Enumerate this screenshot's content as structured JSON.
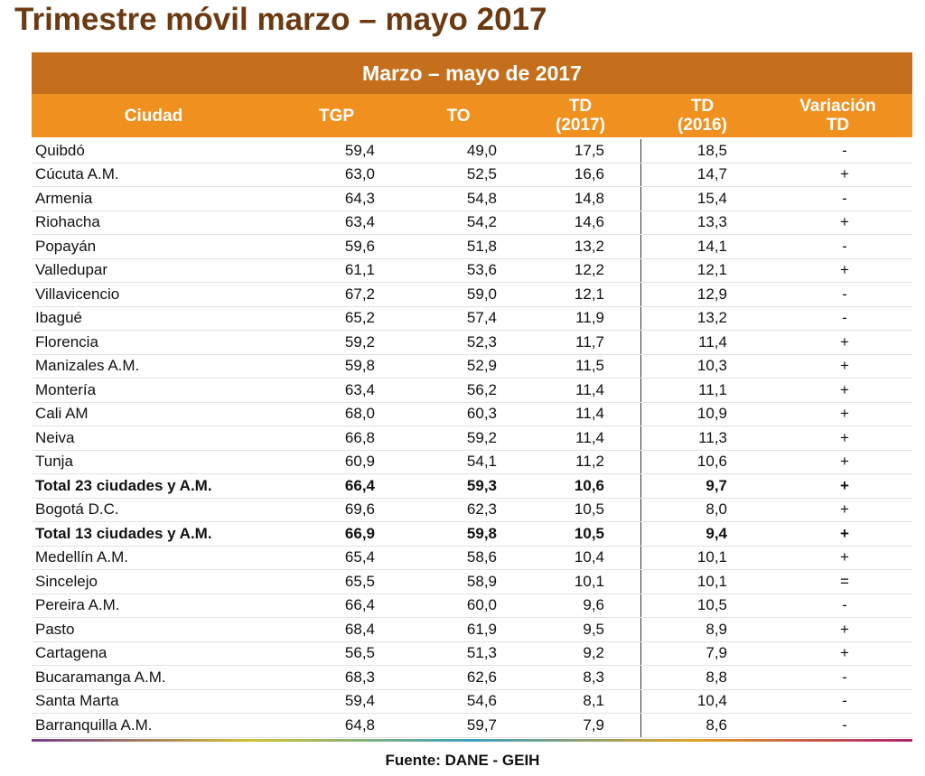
{
  "header": {
    "title": "Trimestre móvil marzo – mayo 2017"
  },
  "table": {
    "band": "Marzo – mayo de 2017",
    "columns": [
      "Ciudad",
      "TGP",
      "TO",
      "TD\n(2017)",
      "TD\n(2016)",
      "Variación\nTD"
    ],
    "rows": [
      [
        "Quibdó",
        "59,4",
        "49,0",
        "17,5",
        "18,5",
        "-"
      ],
      [
        "Cúcuta A.M.",
        "63,0",
        "52,5",
        "16,6",
        "14,7",
        "+"
      ],
      [
        "Armenia",
        "64,3",
        "54,8",
        "14,8",
        "15,4",
        "-"
      ],
      [
        "Riohacha",
        "63,4",
        "54,2",
        "14,6",
        "13,3",
        "+"
      ],
      [
        "Popayán",
        "59,6",
        "51,8",
        "13,2",
        "14,1",
        "-"
      ],
      [
        "Valledupar",
        "61,1",
        "53,6",
        "12,2",
        "12,1",
        "+"
      ],
      [
        "Villavicencio",
        "67,2",
        "59,0",
        "12,1",
        "12,9",
        "-"
      ],
      [
        "Ibagué",
        "65,2",
        "57,4",
        "11,9",
        "13,2",
        "-"
      ],
      [
        "Florencia",
        "59,2",
        "52,3",
        "11,7",
        "11,4",
        "+"
      ],
      [
        "Manizales A.M.",
        "59,8",
        "52,9",
        "11,5",
        "10,3",
        "+"
      ],
      [
        "Montería",
        "63,4",
        "56,2",
        "11,4",
        "11,1",
        "+"
      ],
      [
        "Cali AM",
        "68,0",
        "60,3",
        "11,4",
        "10,9",
        "+"
      ],
      [
        "Neiva",
        "66,8",
        "59,2",
        "11,4",
        "11,3",
        "+"
      ],
      [
        "Tunja",
        "60,9",
        "54,1",
        "11,2",
        "10,6",
        "+"
      ],
      [
        "Total 23 ciudades y A.M.",
        "66,4",
        "59,3",
        "10,6",
        "9,7",
        "+"
      ],
      [
        "Bogotá D.C.",
        "69,6",
        "62,3",
        "10,5",
        "8,0",
        "+"
      ],
      [
        "Total 13 ciudades y A.M.",
        "66,9",
        "59,8",
        "10,5",
        "9,4",
        "+"
      ],
      [
        "Medellín A.M.",
        "65,4",
        "58,6",
        "10,4",
        "10,1",
        "+"
      ],
      [
        "Sincelejo",
        "65,5",
        "58,9",
        "10,1",
        "10,1",
        "="
      ],
      [
        "Pereira A.M.",
        "66,4",
        "60,0",
        "9,6",
        "10,5",
        "-"
      ],
      [
        "Pasto",
        "68,4",
        "61,9",
        "9,5",
        "8,9",
        "+"
      ],
      [
        "Cartagena",
        "56,5",
        "51,3",
        "9,2",
        "7,9",
        "+"
      ],
      [
        "Bucaramanga A.M.",
        "68,3",
        "62,6",
        "8,3",
        "8,8",
        "-"
      ],
      [
        "Santa Marta",
        "59,4",
        "54,6",
        "8,1",
        "10,4",
        "-"
      ],
      [
        "Barranquilla A.M.",
        "64,8",
        "59,7",
        "7,9",
        "8,6",
        "-"
      ]
    ]
  },
  "footer": {
    "source": "Fuente: DANE - GEIH"
  }
}
